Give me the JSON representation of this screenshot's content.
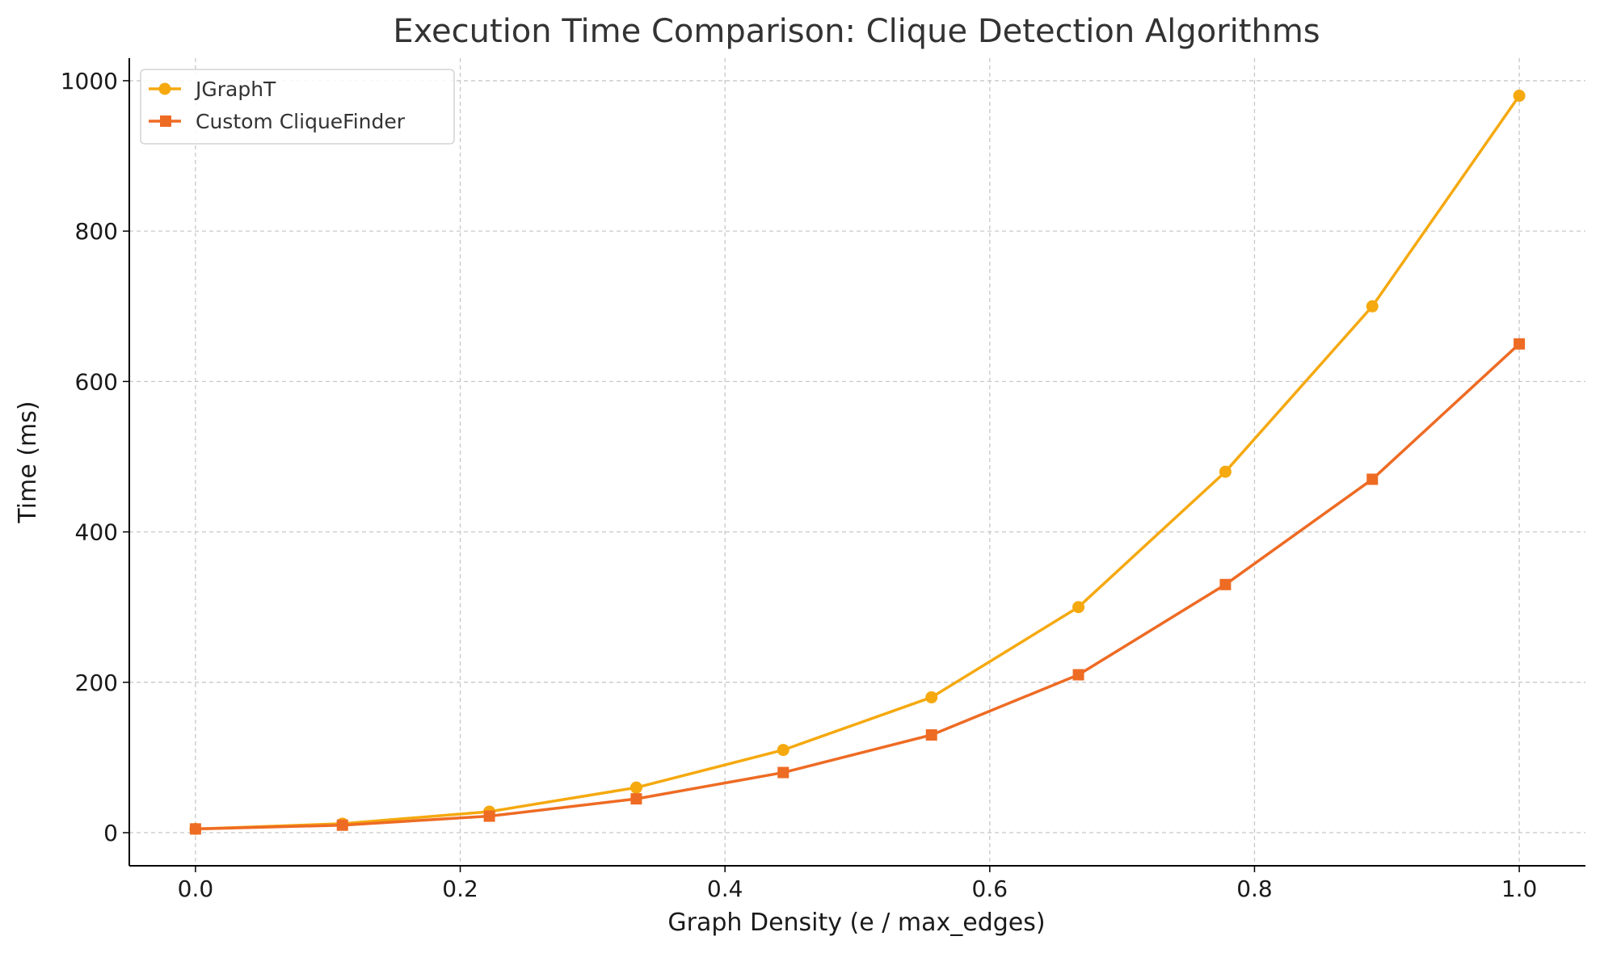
{
  "chart_data": {
    "type": "line",
    "title": "Execution Time Comparison: Clique Detection Algorithms",
    "xlabel": "Graph Density (e / max_edges)",
    "ylabel": "Time (ms)",
    "xlim": [
      -0.05,
      1.05
    ],
    "ylim": [
      -44,
      1030
    ],
    "x_ticks": [
      "0.0",
      "0.2",
      "0.4",
      "0.6",
      "0.8",
      "1.0"
    ],
    "y_ticks": [
      "0",
      "200",
      "400",
      "600",
      "800",
      "1000"
    ],
    "grid": true,
    "legend_position": "upper-left",
    "x": [
      0.0,
      0.111,
      0.222,
      0.333,
      0.444,
      0.556,
      0.667,
      0.778,
      0.889,
      1.0
    ],
    "series": [
      {
        "name": "JGraphT",
        "color": "#f5a90f",
        "marker": "circle",
        "values": [
          5,
          12,
          28,
          60,
          110,
          180,
          300,
          480,
          700,
          980
        ]
      },
      {
        "name": "Custom CliqueFinder",
        "color": "#ee6b24",
        "marker": "square",
        "values": [
          5,
          10,
          22,
          45,
          80,
          130,
          210,
          330,
          470,
          650
        ]
      }
    ]
  }
}
